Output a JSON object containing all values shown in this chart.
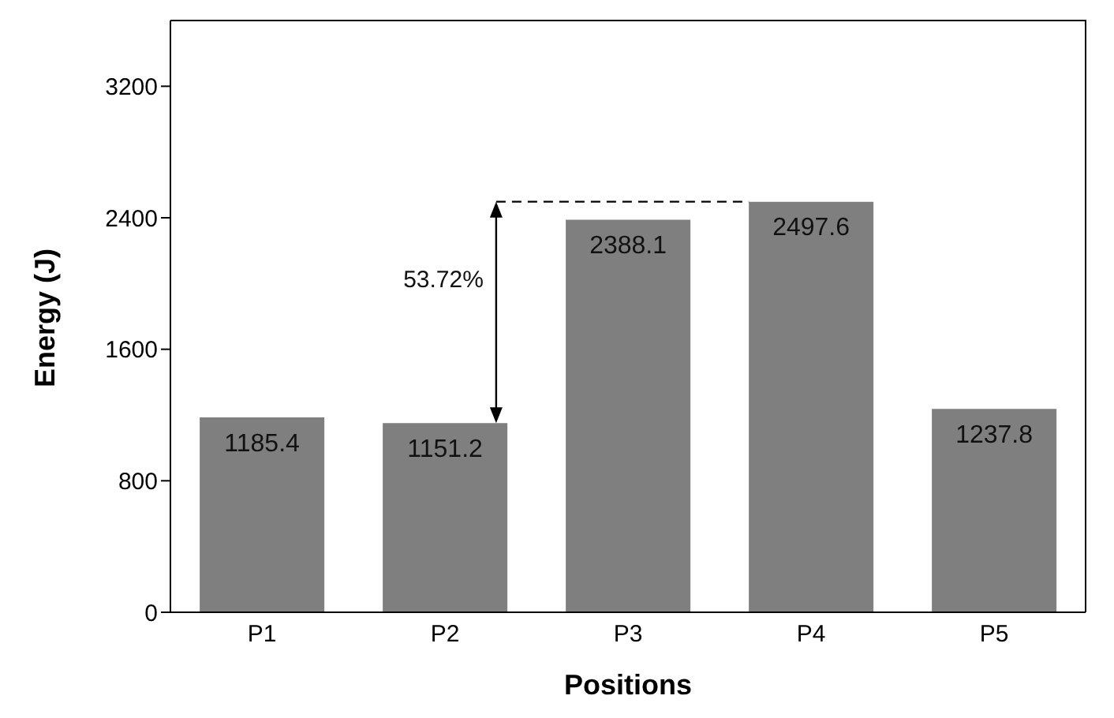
{
  "chart_data": {
    "type": "bar",
    "xlabel": "Positions",
    "ylabel": "Energy (J)",
    "categories": [
      "P1",
      "P2",
      "P3",
      "P4",
      "P5"
    ],
    "values": [
      1185.4,
      1151.2,
      2388.1,
      2497.6,
      1237.8
    ],
    "color": "#7f7f7f",
    "ylim": [
      0,
      3600
    ],
    "yticks": [
      0,
      800,
      1600,
      2400,
      3200
    ],
    "data_labels": true,
    "grid": false,
    "annotations": [
      "53.72%"
    ]
  }
}
